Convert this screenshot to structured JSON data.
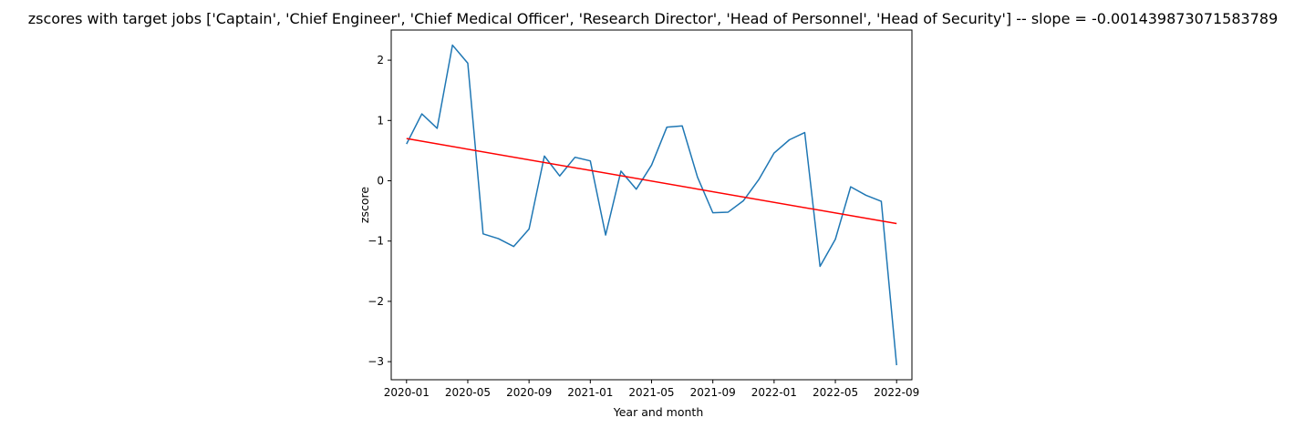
{
  "chart_data": {
    "type": "line",
    "title": "zscores with target jobs ['Captain', 'Chief Engineer', 'Chief Medical Officer', 'Research Director', 'Head of Personnel', 'Head of Security'] -- slope = -0.001439873071583789",
    "xlabel": "Year and month",
    "ylabel": "zscore",
    "x_tick_labels": [
      "2020-01",
      "2020-05",
      "2020-09",
      "2021-01",
      "2021-05",
      "2021-09",
      "2022-01",
      "2022-05",
      "2022-09"
    ],
    "y_ticks": [
      -3,
      -2,
      -1,
      0,
      1,
      2
    ],
    "y_tick_labels": [
      "−3",
      "−2",
      "−1",
      "0",
      "1",
      "2"
    ],
    "ylim": [
      -3.3,
      2.5
    ],
    "xlim": [
      "2019-12",
      "2022-10"
    ],
    "grid": false,
    "series": [
      {
        "color": "#1f77b4",
        "x": [
          "2020-01",
          "2020-02",
          "2020-03",
          "2020-04",
          "2020-05",
          "2020-06",
          "2020-07",
          "2020-08",
          "2020-09",
          "2020-10",
          "2020-11",
          "2020-12",
          "2021-01",
          "2021-02",
          "2021-03",
          "2021-04",
          "2021-05",
          "2021-06",
          "2021-07",
          "2021-08",
          "2021-09",
          "2021-10",
          "2021-11",
          "2021-12",
          "2022-01",
          "2022-02",
          "2022-03",
          "2022-04",
          "2022-05",
          "2022-06",
          "2022-07",
          "2022-08",
          "2022-09"
        ],
        "values": [
          0.61,
          1.11,
          0.87,
          2.25,
          1.95,
          -0.88,
          -0.96,
          -1.09,
          -0.8,
          0.41,
          0.08,
          0.39,
          0.33,
          -0.9,
          0.16,
          -0.14,
          0.26,
          0.89,
          0.91,
          0.06,
          -0.53,
          -0.52,
          -0.33,
          0.02,
          0.46,
          0.68,
          0.8,
          -1.42,
          -0.97,
          -0.1,
          -0.24,
          -0.34,
          -3.06
        ]
      },
      {
        "color": "#ff0000",
        "x": [
          "2020-01",
          "2022-09"
        ],
        "values": [
          0.7,
          -0.71
        ]
      }
    ]
  }
}
